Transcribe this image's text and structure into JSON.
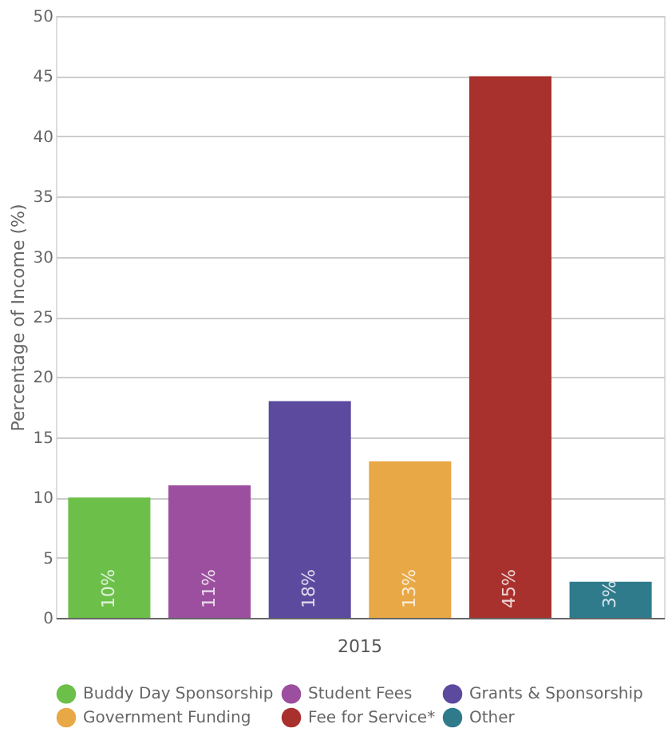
{
  "chart_data": {
    "type": "bar",
    "ylabel": "Percentage of Income (%)",
    "categories": [
      "2015"
    ],
    "ylim": [
      0,
      50
    ],
    "yticks": [
      0,
      5,
      10,
      15,
      20,
      25,
      30,
      35,
      40,
      45,
      50
    ],
    "grid": "y",
    "legend": "bottom",
    "marker": "circle",
    "series": [
      {
        "name": "Buddy Day Sponsorship",
        "color": "#6cc04a",
        "values": [
          10
        ],
        "value_labels": [
          "10%"
        ]
      },
      {
        "name": "Student Fees",
        "color": "#9b4f9e",
        "values": [
          11
        ],
        "value_labels": [
          "11%"
        ]
      },
      {
        "name": "Grants & Sponsorship",
        "color": "#5b4a9e",
        "values": [
          18
        ],
        "value_labels": [
          "18%"
        ]
      },
      {
        "name": "Government Funding",
        "color": "#e8a845",
        "values": [
          13
        ],
        "value_labels": [
          "13%"
        ]
      },
      {
        "name": "Fee for Service*",
        "color": "#a8302d",
        "values": [
          45
        ],
        "value_labels": [
          "45%"
        ]
      },
      {
        "name": "Other",
        "color": "#2f7b8c",
        "values": [
          3
        ],
        "value_labels": [
          "3%"
        ]
      }
    ]
  }
}
